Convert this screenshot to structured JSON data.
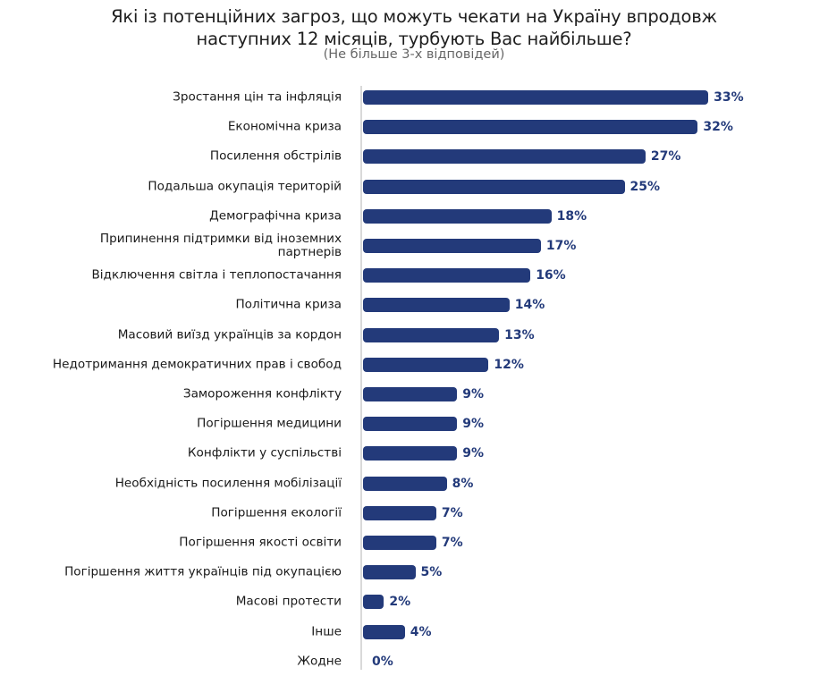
{
  "title_line1": "Які із потенційних загроз, що можуть чекати на Україну впродовж",
  "title_line2": "наступних 12 місяців, турбують Вас найбільше?",
  "subtitle": "(Не більше 3-х відповідей)",
  "bar_color": "#233a7a",
  "chart_data": {
    "type": "bar",
    "orientation": "horizontal",
    "title": "Які із потенційних загроз, що можуть чекати на Україну впродовж наступних 12 місяців, турбують Вас найбільше?",
    "subtitle": "(Не більше 3-х відповідей)",
    "xlabel": "",
    "ylabel": "",
    "unit": "%",
    "grid": false,
    "legend": null,
    "categories": [
      "Зростання цін та інфляція",
      "Економічна криза",
      "Посилення обстрілів",
      "Подальша окупація територій",
      "Демографічна криза",
      "Припинення підтримки від іноземних партнерів",
      "Відключення світла і теплопостачання",
      "Політична криза",
      "Масовий виїзд українців за кордон",
      "Недотримання демократичних прав і свобод",
      "Замороження конфлікту",
      "Погіршення медицини",
      "Конфлікти у суспільстві",
      "Необхідність посилення мобілізації",
      "Погіршення екології",
      "Погіршення якості освіти",
      "Погіршення життя українців під окупацією",
      "Масові протести",
      "Інше",
      "Жодне"
    ],
    "values": [
      33,
      32,
      27,
      25,
      18,
      17,
      16,
      14,
      13,
      12,
      9,
      9,
      9,
      8,
      7,
      7,
      5,
      2,
      4,
      0
    ],
    "value_labels": [
      "33%",
      "32%",
      "27%",
      "25%",
      "18%",
      "17%",
      "16%",
      "14%",
      "13%",
      "12%",
      "9%",
      "9%",
      "9%",
      "8%",
      "7%",
      "7%",
      "5%",
      "2%",
      "4%",
      "0%"
    ]
  }
}
